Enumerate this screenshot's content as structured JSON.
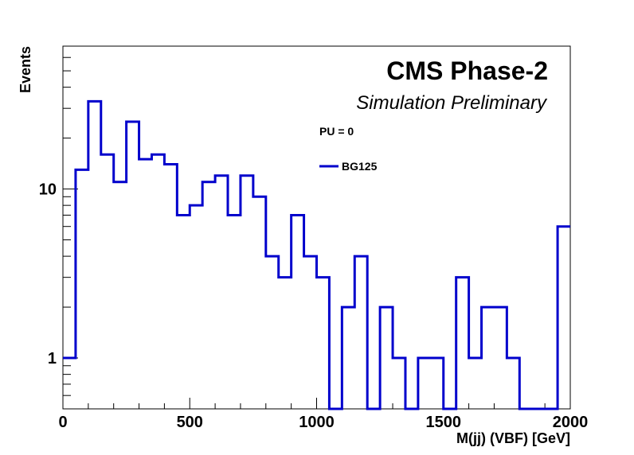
{
  "chart_data": {
    "type": "line",
    "title": "CMS Phase-2",
    "subtitle": "Simulation Preliminary",
    "legend_header": "PU = 0",
    "legend_position": "top-right",
    "xlabel": "M(jj) (VBF) [GeV]",
    "ylabel": "Events",
    "xlim": [
      0,
      2000
    ],
    "ylim": [
      0.5,
      70
    ],
    "y_scale": "log",
    "grid": false,
    "x_ticks": [
      0,
      500,
      1000,
      1500,
      2000
    ],
    "x_tick_labels": [
      "0",
      "500",
      "1000",
      "1500",
      "2000"
    ],
    "y_ticks": [
      1,
      10
    ],
    "y_tick_labels": [
      "1",
      "10"
    ],
    "series": [
      {
        "name": "BG125",
        "color": "#0000cc",
        "style": "step-histogram",
        "bin_edges": [
          0,
          50,
          100,
          150,
          200,
          250,
          300,
          350,
          400,
          450,
          500,
          550,
          600,
          650,
          700,
          750,
          800,
          850,
          900,
          950,
          1000,
          1050,
          1100,
          1150,
          1200,
          1250,
          1300,
          1350,
          1400,
          1450,
          1500,
          1550,
          1600,
          1650,
          1700,
          1750,
          1800,
          1850,
          1900,
          1950,
          2000
        ],
        "values": [
          1,
          13,
          33,
          16,
          11,
          25,
          15,
          16,
          14,
          7,
          8,
          11,
          12,
          7,
          12,
          9,
          4,
          3,
          7,
          4,
          3,
          0,
          2,
          4,
          0,
          2,
          1,
          0,
          1,
          1,
          0,
          3,
          1,
          2,
          2,
          1,
          0,
          0,
          0,
          6
        ]
      }
    ]
  }
}
